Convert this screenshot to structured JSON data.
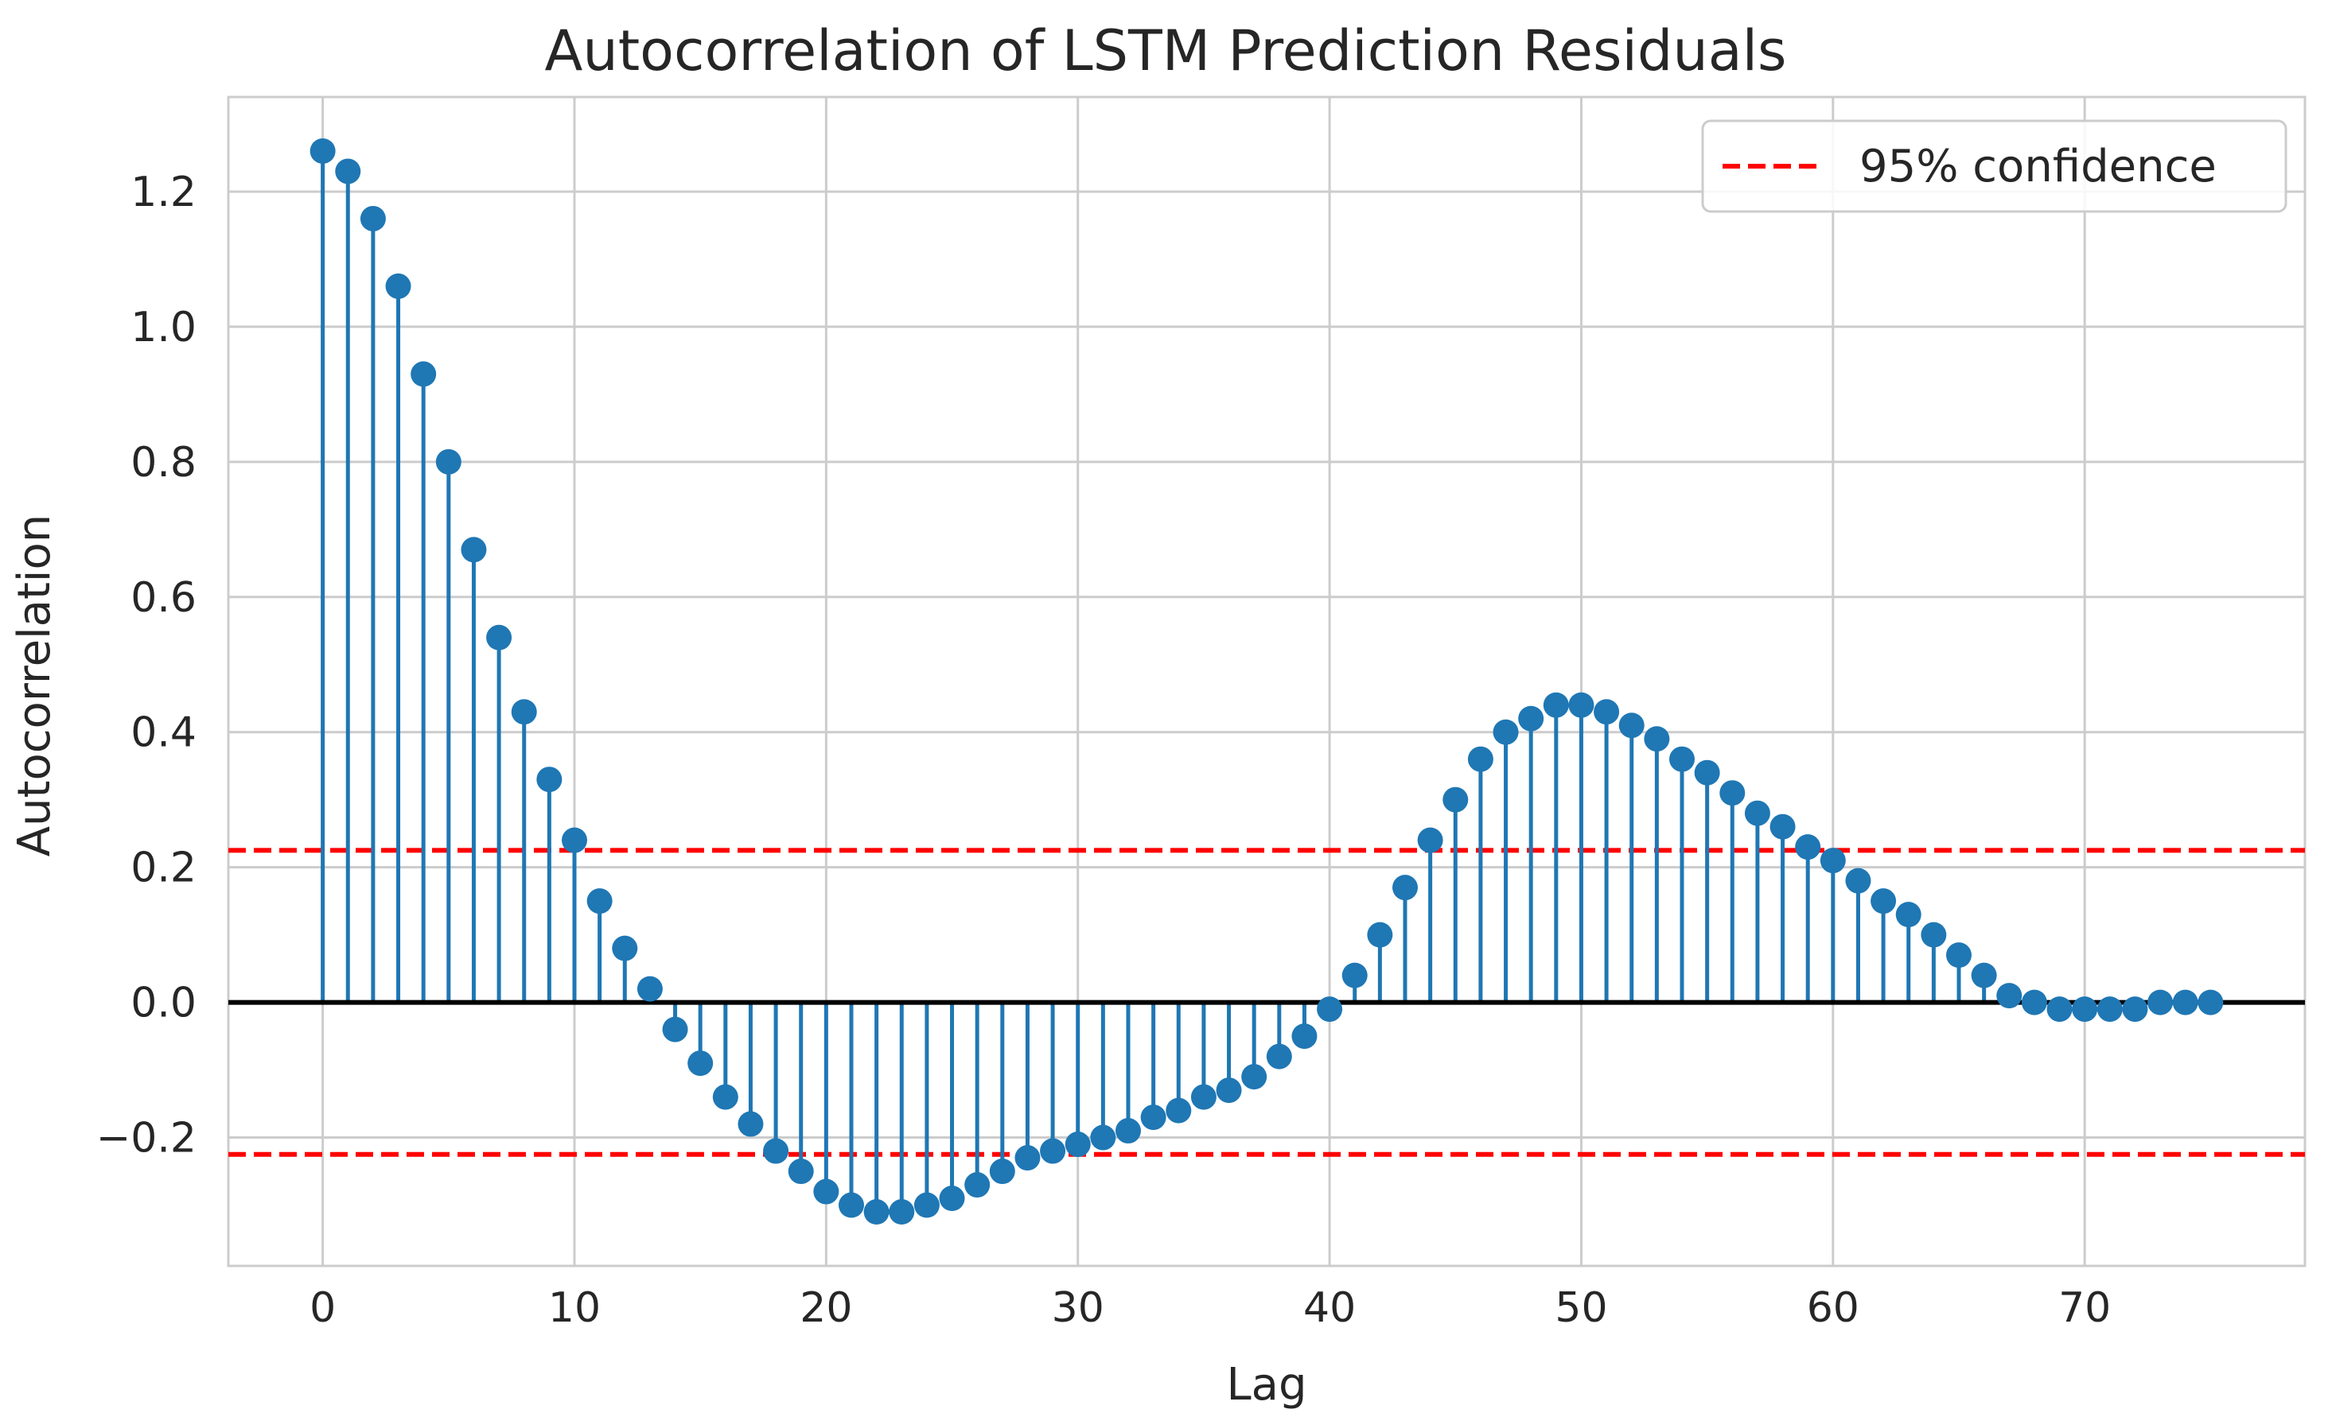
{
  "chart_data": {
    "type": "stem",
    "title": "Autocorrelation of LSTM Prediction Residuals",
    "xlabel": "Lag",
    "ylabel": "Autocorrelation",
    "xlim": [
      -3.75,
      78.75
    ],
    "ylim": [
      -0.39,
      1.34
    ],
    "xticks": [
      0,
      10,
      20,
      30,
      40,
      50,
      60,
      70
    ],
    "xtick_labels": [
      "0",
      "10",
      "20",
      "30",
      "40",
      "50",
      "60",
      "70"
    ],
    "yticks": [
      -0.2,
      0.0,
      0.2,
      0.4,
      0.6,
      0.8,
      1.0,
      1.2
    ],
    "ytick_labels": [
      "−0.2",
      "0.0",
      "0.2",
      "0.4",
      "0.6",
      "0.8",
      "1.0",
      "1.2"
    ],
    "grid": true,
    "lags": [
      0,
      1,
      2,
      3,
      4,
      5,
      6,
      7,
      8,
      9,
      10,
      11,
      12,
      13,
      14,
      15,
      16,
      17,
      18,
      19,
      20,
      21,
      22,
      23,
      24,
      25,
      26,
      27,
      28,
      29,
      30,
      31,
      32,
      33,
      34,
      35,
      36,
      37,
      38,
      39,
      40,
      41,
      42,
      43,
      44,
      45,
      46,
      47,
      48,
      49,
      50,
      51,
      52,
      53,
      54,
      55,
      56,
      57,
      58,
      59,
      60,
      61,
      62,
      63,
      64,
      65,
      66,
      67,
      68,
      69,
      70,
      71,
      72,
      73,
      74,
      75
    ],
    "values": [
      1.26,
      1.23,
      1.16,
      1.06,
      0.93,
      0.8,
      0.67,
      0.54,
      0.43,
      0.33,
      0.24,
      0.15,
      0.08,
      0.02,
      -0.04,
      -0.09,
      -0.14,
      -0.18,
      -0.22,
      -0.25,
      -0.28,
      -0.3,
      -0.31,
      -0.31,
      -0.3,
      -0.29,
      -0.27,
      -0.25,
      -0.23,
      -0.22,
      -0.21,
      -0.2,
      -0.19,
      -0.17,
      -0.16,
      -0.14,
      -0.13,
      -0.11,
      -0.08,
      -0.05,
      -0.01,
      0.04,
      0.1,
      0.17,
      0.24,
      0.3,
      0.36,
      0.4,
      0.42,
      0.44,
      0.44,
      0.43,
      0.41,
      0.39,
      0.36,
      0.34,
      0.31,
      0.28,
      0.26,
      0.23,
      0.21,
      0.18,
      0.15,
      0.13,
      0.1,
      0.07,
      0.04,
      0.01,
      0.0,
      -0.01,
      -0.01,
      -0.01,
      -0.01,
      0.0,
      0.0,
      0.0
    ],
    "confidence": 0.225,
    "legend": {
      "label": "95% confidence",
      "position": "top-right"
    },
    "colors": {
      "stem": "#1f77b4",
      "confidence": "#ff0000",
      "baseline": "#000000",
      "grid": "#cccccc"
    }
  }
}
